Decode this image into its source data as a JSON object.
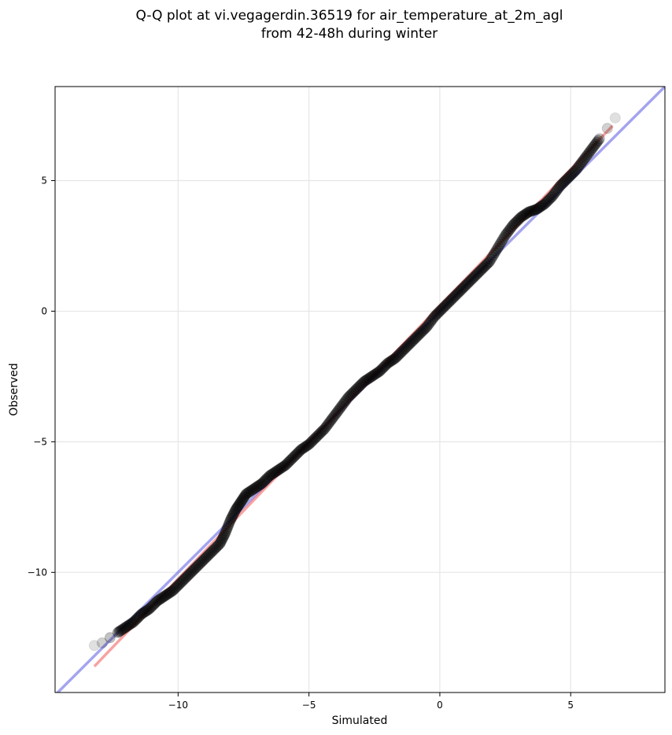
{
  "chart_data": {
    "type": "scatter",
    "title_lines": [
      "Q-Q plot at vi.vegagerdin.36519 for air_temperature_at_2m_agl",
      "from 42-48h during winter"
    ],
    "xlabel": "Simulated",
    "ylabel": "Observed",
    "xlim": [
      -14.7,
      8.6
    ],
    "ylim": [
      -14.6,
      8.6
    ],
    "xticks": [
      -10,
      -5,
      0,
      5
    ],
    "yticks": [
      -10,
      -5,
      0,
      5
    ],
    "xtick_labels": [
      "−10",
      "−5",
      "0",
      "5"
    ],
    "ytick_labels": [
      "−10",
      "−5",
      "0",
      "5"
    ],
    "grid": true,
    "series": [
      {
        "kind": "quantile-points",
        "color": "#000000",
        "points": [
          [
            -13.2,
            -12.8
          ],
          [
            -12.9,
            -12.7
          ],
          [
            -12.6,
            -12.5
          ],
          [
            -12.3,
            -12.3
          ],
          [
            -12.0,
            -12.1
          ],
          [
            -11.7,
            -11.9
          ],
          [
            -11.4,
            -11.6
          ],
          [
            -11.1,
            -11.4
          ],
          [
            -10.8,
            -11.1
          ],
          [
            -10.5,
            -10.9
          ],
          [
            -10.2,
            -10.7
          ],
          [
            -9.9,
            -10.4
          ],
          [
            -9.6,
            -10.1
          ],
          [
            -9.3,
            -9.8
          ],
          [
            -9.0,
            -9.5
          ],
          [
            -8.7,
            -9.2
          ],
          [
            -8.4,
            -8.9
          ],
          [
            -8.2,
            -8.5
          ],
          [
            -8.0,
            -8.0
          ],
          [
            -7.8,
            -7.6
          ],
          [
            -7.6,
            -7.3
          ],
          [
            -7.4,
            -7.0
          ],
          [
            -7.1,
            -6.8
          ],
          [
            -6.8,
            -6.6
          ],
          [
            -6.5,
            -6.3
          ],
          [
            -6.2,
            -6.1
          ],
          [
            -5.9,
            -5.9
          ],
          [
            -5.6,
            -5.6
          ],
          [
            -5.3,
            -5.3
          ],
          [
            -5.0,
            -5.1
          ],
          [
            -4.7,
            -4.8
          ],
          [
            -4.4,
            -4.5
          ],
          [
            -4.1,
            -4.1
          ],
          [
            -3.8,
            -3.7
          ],
          [
            -3.5,
            -3.3
          ],
          [
            -3.2,
            -3.0
          ],
          [
            -2.9,
            -2.7
          ],
          [
            -2.6,
            -2.5
          ],
          [
            -2.3,
            -2.3
          ],
          [
            -2.0,
            -2.0
          ],
          [
            -1.7,
            -1.8
          ],
          [
            -1.4,
            -1.5
          ],
          [
            -1.1,
            -1.2
          ],
          [
            -0.8,
            -0.9
          ],
          [
            -0.5,
            -0.6
          ],
          [
            -0.2,
            -0.2
          ],
          [
            0.1,
            0.1
          ],
          [
            0.4,
            0.4
          ],
          [
            0.7,
            0.7
          ],
          [
            1.0,
            1.0
          ],
          [
            1.3,
            1.3
          ],
          [
            1.6,
            1.6
          ],
          [
            1.9,
            1.9
          ],
          [
            2.2,
            2.4
          ],
          [
            2.5,
            2.9
          ],
          [
            2.8,
            3.3
          ],
          [
            3.1,
            3.6
          ],
          [
            3.4,
            3.8
          ],
          [
            3.7,
            3.9
          ],
          [
            4.0,
            4.1
          ],
          [
            4.3,
            4.4
          ],
          [
            4.6,
            4.8
          ],
          [
            4.9,
            5.1
          ],
          [
            5.2,
            5.4
          ],
          [
            5.5,
            5.8
          ],
          [
            5.8,
            6.2
          ],
          [
            6.1,
            6.6
          ],
          [
            6.4,
            7.0
          ],
          [
            6.7,
            7.4
          ]
        ]
      },
      {
        "kind": "reference-line",
        "color": "#4a4ae0",
        "points": [
          [
            -14.7,
            -14.7
          ],
          [
            8.6,
            8.6
          ]
        ]
      },
      {
        "kind": "fit-line",
        "color": "#f04545",
        "points": [
          [
            -13.2,
            -13.6
          ],
          [
            6.6,
            7.1
          ]
        ]
      }
    ]
  }
}
